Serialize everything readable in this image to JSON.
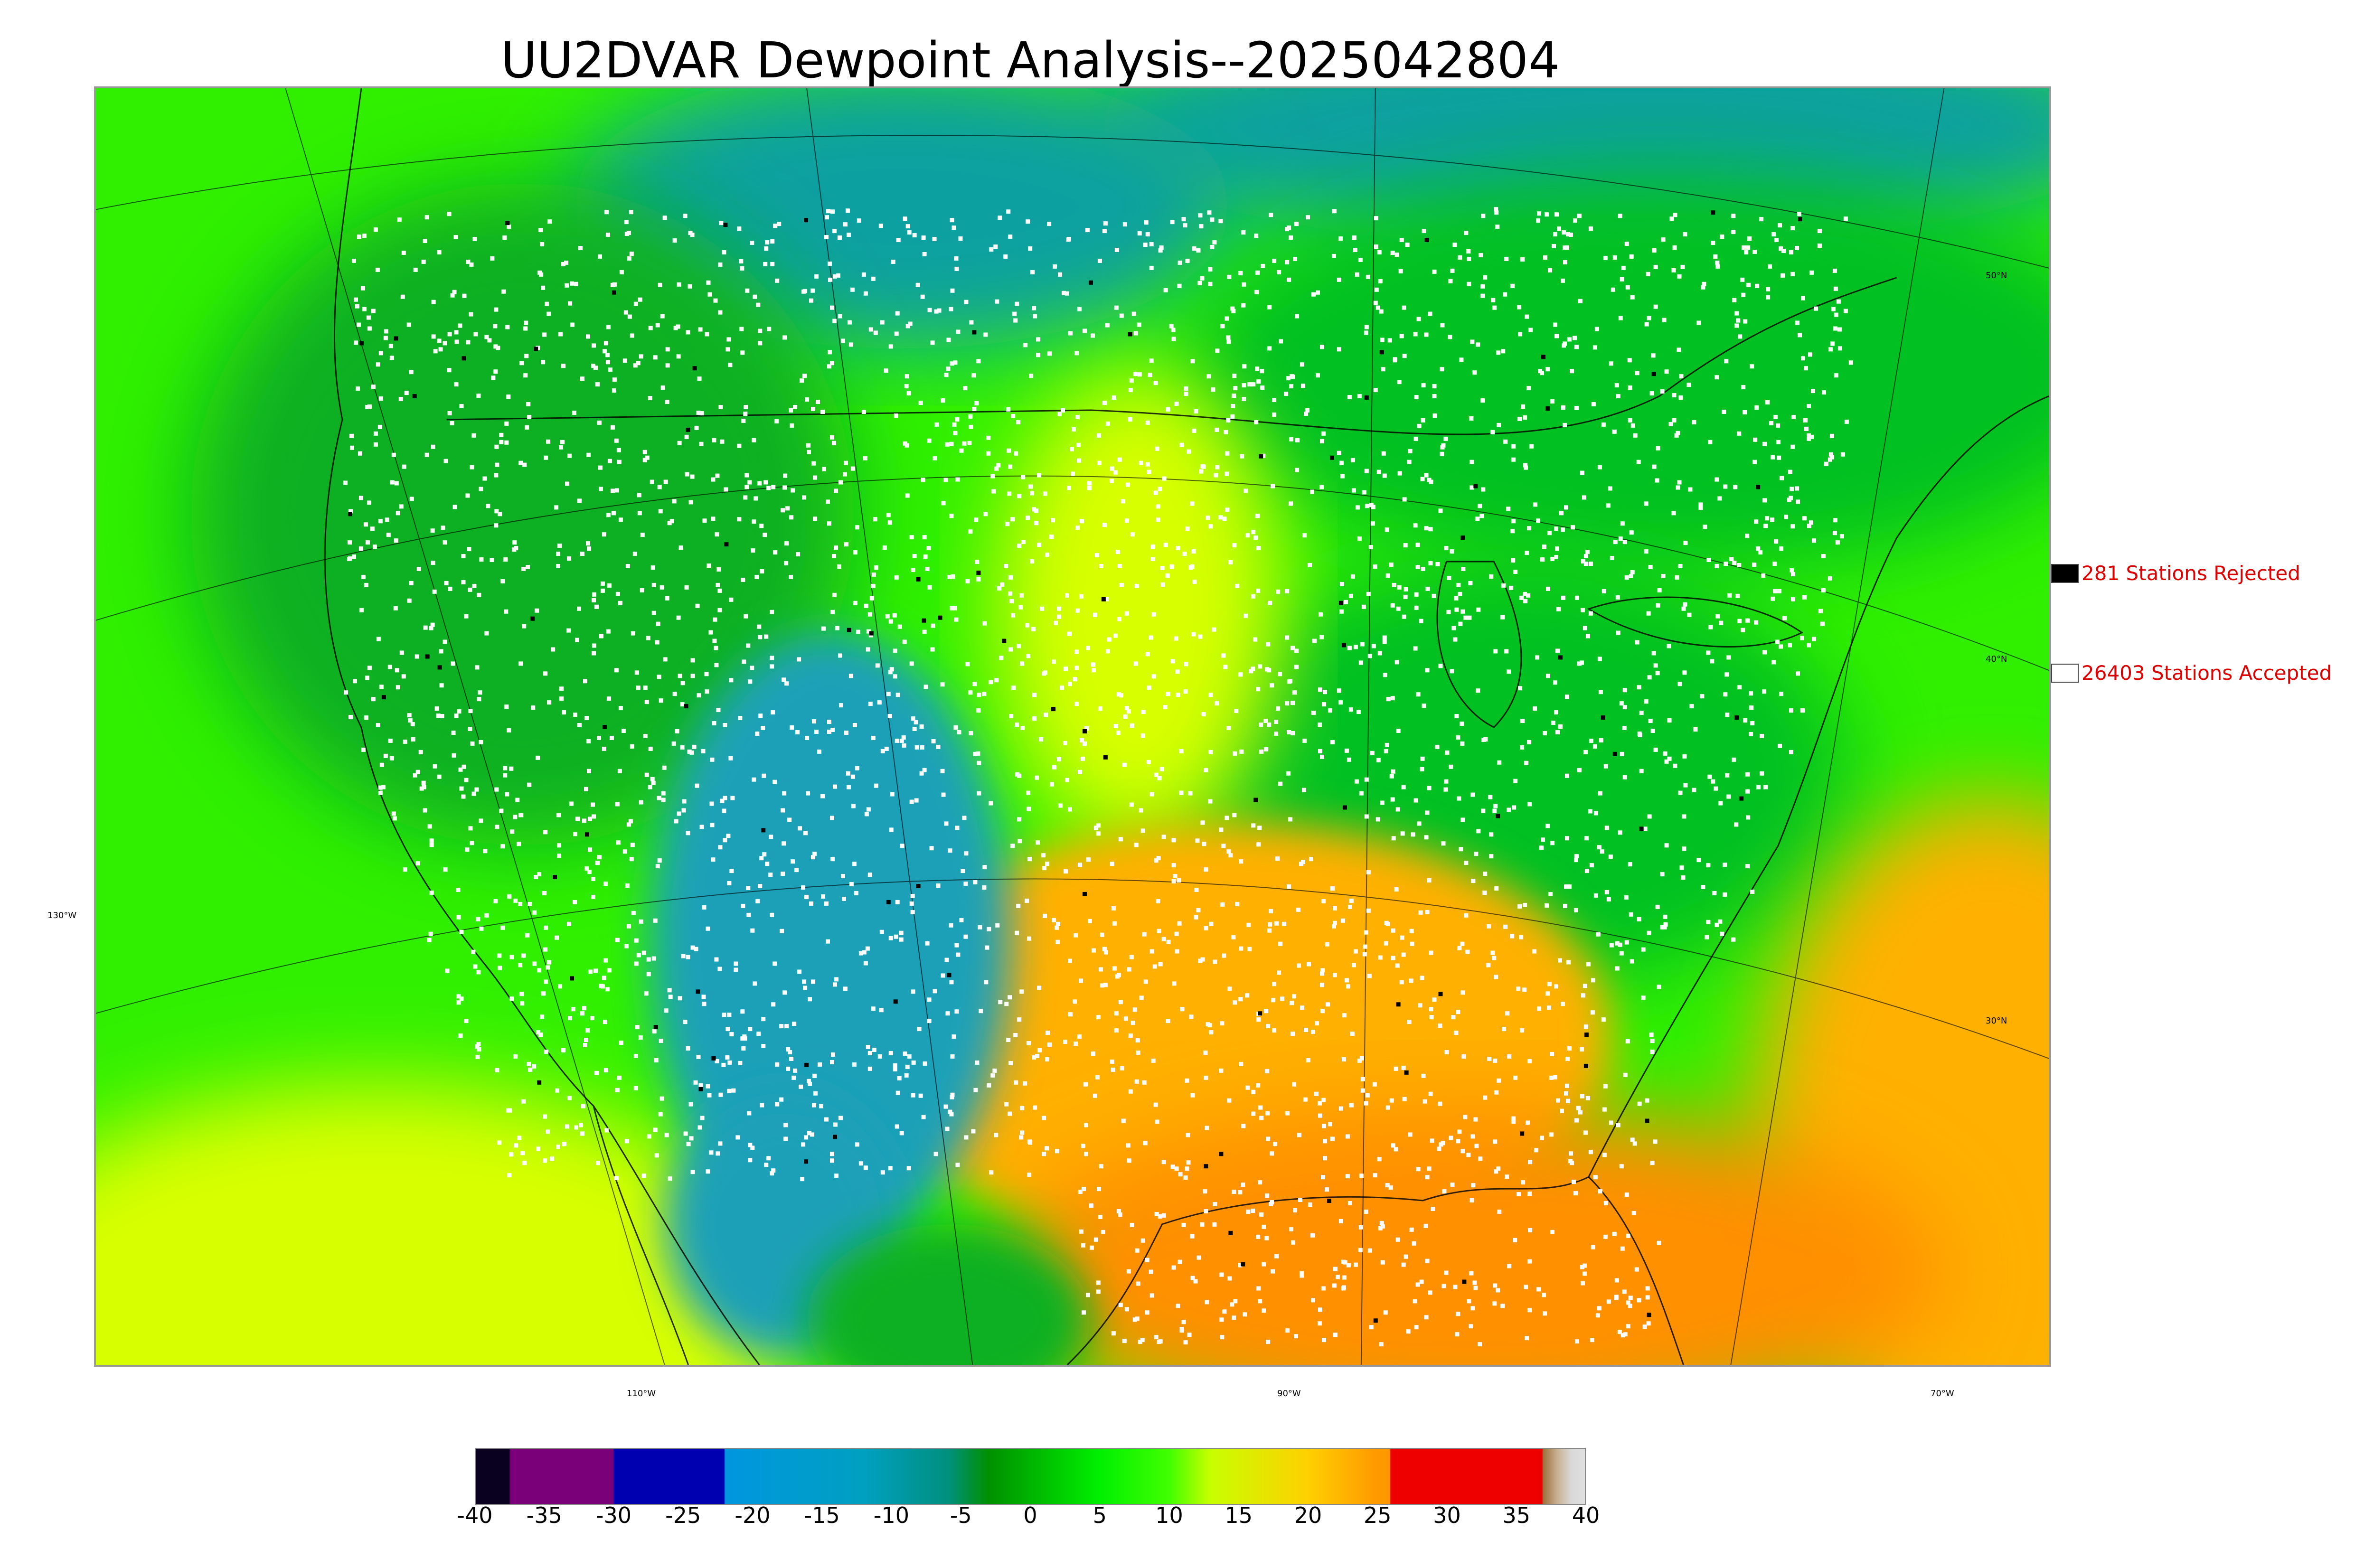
{
  "title": "UU2DVAR Dewpoint Analysis--2025042804",
  "legend": {
    "rejected": {
      "label": "281 Stations Rejected",
      "color": "#000000"
    },
    "accepted": {
      "label": "26403 Stations Accepted",
      "color": "#ffffff"
    }
  },
  "graticule": {
    "lon_labels": [
      "130°W",
      "110°W",
      "90°W",
      "70°W"
    ],
    "lat_labels": [
      "50°N",
      "40°N",
      "30°N"
    ]
  },
  "colorbar": {
    "ticks": [
      "-40",
      "-35",
      "-30",
      "-25",
      "-20",
      "-15",
      "-10",
      "-5",
      "0",
      "5",
      "10",
      "15",
      "20",
      "25",
      "30",
      "35",
      "40"
    ],
    "range": [
      -40,
      40
    ],
    "stops": [
      {
        "value": -40,
        "color": "#0a0020"
      },
      {
        "value": -37.6,
        "color": "#0a0020"
      },
      {
        "value": -37.5,
        "color": "#7a007a"
      },
      {
        "value": -30.1,
        "color": "#7a007a"
      },
      {
        "value": -30,
        "color": "#0000b0"
      },
      {
        "value": -22.1,
        "color": "#0000b0"
      },
      {
        "value": -22,
        "color": "#0096e0"
      },
      {
        "value": -12,
        "color": "#00a0c0"
      },
      {
        "value": -6,
        "color": "#009080"
      },
      {
        "value": -3,
        "color": "#009000"
      },
      {
        "value": 5,
        "color": "#00f000"
      },
      {
        "value": 10,
        "color": "#40ff00"
      },
      {
        "value": 13,
        "color": "#c8ff00"
      },
      {
        "value": 20,
        "color": "#ffd000"
      },
      {
        "value": 25,
        "color": "#ff9900"
      },
      {
        "value": 25.9,
        "color": "#ff9900"
      },
      {
        "value": 26,
        "color": "#ee0000"
      },
      {
        "value": 36.9,
        "color": "#ee0000"
      },
      {
        "value": 37,
        "color": "#a07040"
      },
      {
        "value": 38,
        "color": "#c8b090"
      },
      {
        "value": 39,
        "color": "#d8d8d8"
      },
      {
        "value": 40,
        "color": "#e0e0e0"
      }
    ]
  },
  "field_colors": {
    "ocean_west": "#30f000",
    "cold_plateau": "#1aa0b8",
    "dry_north": "#10b020",
    "moist_south": "#ffb000",
    "gulf": "#ff9000",
    "plains_yellow": "#d8ff00",
    "northeast": "#00c020",
    "canada_cold": "#10a0a0"
  },
  "station_colors": {
    "accepted": "#ffffff",
    "rejected": "#000000"
  }
}
